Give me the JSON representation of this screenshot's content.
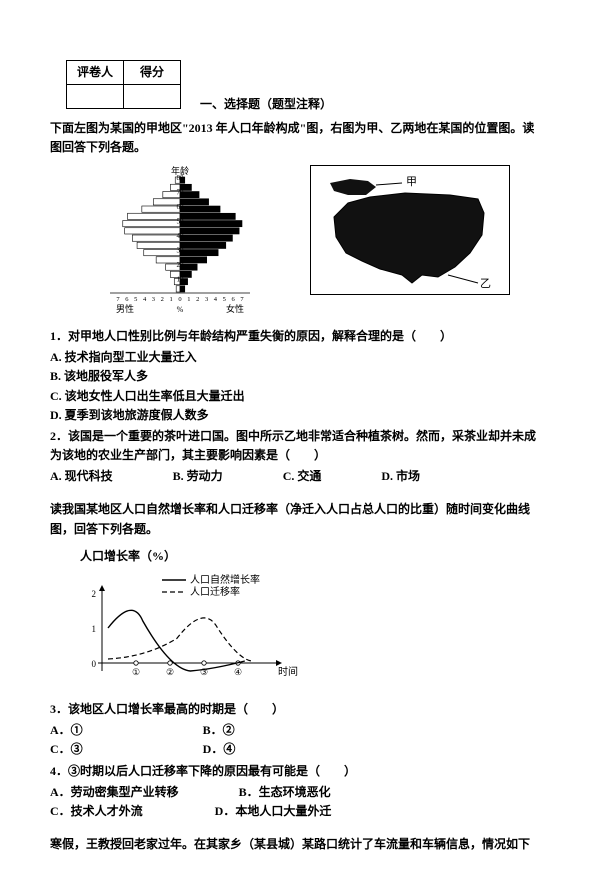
{
  "header": {
    "col1": "评卷人",
    "col2": "得分"
  },
  "section_title": "一、选择题（题型注释）",
  "intro1": "下面左图为某国的甲地区\"2013 年人口年龄构成\"图，右图为甲、乙两地在某国的位置图。读图回答下列各题。",
  "pyramid": {
    "y_title": "年龄",
    "y_labels": [
      "80",
      "70",
      "60",
      "50",
      "40",
      "30",
      "20",
      "10"
    ],
    "x_left": "男性",
    "x_right": "女性",
    "x_unit": "%",
    "x_ticks_left": [
      "7",
      "6",
      "5",
      "4",
      "3",
      "2",
      "1",
      "0"
    ],
    "x_ticks_right": [
      "1",
      "2",
      "3",
      "4",
      "5",
      "6",
      "7"
    ],
    "left_vals": [
      5,
      10,
      18,
      28,
      40,
      55,
      60,
      58,
      50,
      45,
      38,
      25,
      15,
      10,
      6,
      4
    ],
    "right_vals": [
      5,
      12,
      20,
      30,
      42,
      58,
      65,
      62,
      55,
      48,
      40,
      28,
      18,
      12,
      8,
      5
    ]
  },
  "map": {
    "label_top": "甲",
    "label_bottom": "乙"
  },
  "q1": {
    "stem": "1．对甲地人口性别比例与年龄结构严重失衡的原因，解释合理的是（　　）",
    "a": "A. 技术指向型工业大量迁入",
    "b": "B. 该地服役军人多",
    "c": "C. 该地女性人口出生率低且大量迁出",
    "d": "D. 夏季到该地旅游度假人数多"
  },
  "q2": {
    "stem": "2．该国是一个重要的茶叶进口国。图中所示乙地非常适合种植茶树。然而，采茶业却并未成为该地的农业生产部门，其主要影响因素是（　　）",
    "a": "A. 现代科技",
    "b": "B. 劳动力",
    "c": "C. 交通",
    "d": "D. 市场"
  },
  "intro2": "读我国某地区人口自然增长率和人口迁移率（净迁入人口占总人口的比重）随时间变化曲线图，回答下列各题。",
  "chart2": {
    "title": "人口增长率（%）",
    "legend1": "人口自然增长率",
    "legend2": "人口迁移率",
    "y_ticks": [
      "2",
      "1",
      "0"
    ],
    "x_ticks": [
      "①",
      "②",
      "③",
      "④"
    ],
    "x_label": "时间",
    "bg": "#ffffff",
    "line1_color": "#000000",
    "line2_color": "#000000"
  },
  "q3": {
    "stem": "3．该地区人口增长率最高的时期是（　　）",
    "a": "A．①",
    "b": "B．②",
    "c": "C．③",
    "d": "D．④"
  },
  "q4": {
    "stem": "4．③时期以后人口迁移率下降的原因最有可能是（　　）",
    "a": "A．劳动密集型产业转移",
    "b": "B．生态环境恶化",
    "c": "C．技术人才外流",
    "d": "D．本地人口大量外迁"
  },
  "intro3": "寒假，王教授回老家过年。在其家乡（某县城）某路口统计了车流量和车辆信息，情况如下"
}
